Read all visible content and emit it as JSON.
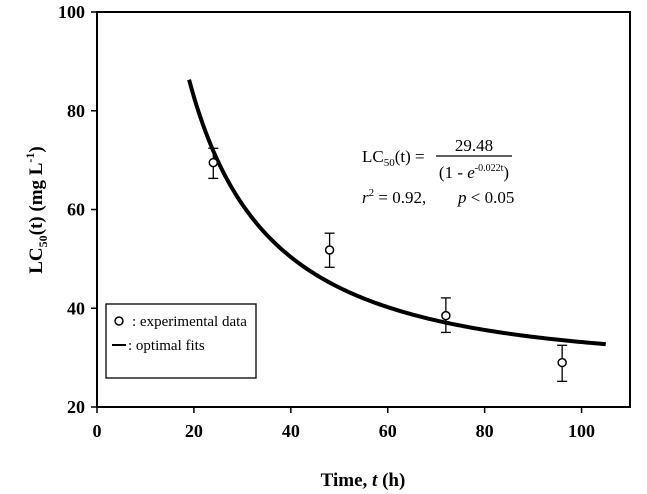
{
  "chart_data": {
    "type": "scatter",
    "xlabel": {
      "prefix": "Time, ",
      "var": "t",
      "suffix": " (h)"
    },
    "ylabel": {
      "pre": "LC",
      "sub": "50",
      "mid": "(t) (mg L",
      "sup": "-1",
      "post": ")"
    },
    "xlim": [
      0,
      110
    ],
    "ylim": [
      20,
      100
    ],
    "xticks": [
      0,
      20,
      40,
      60,
      80,
      100
    ],
    "yticks": [
      20,
      40,
      60,
      80,
      100
    ],
    "grid": false,
    "legend_position": "bottom-left",
    "series": [
      {
        "name": ": experimental data",
        "kind": "points",
        "marker": "open-circle",
        "x": [
          24,
          48,
          72,
          96
        ],
        "y": [
          69.5,
          51.8,
          38.5,
          29
        ],
        "error_low": [
          66.3,
          48.3,
          35.1,
          25.2
        ],
        "error_high": [
          72.4,
          55.2,
          42.1,
          32.5
        ]
      },
      {
        "name": ": optimal fits",
        "kind": "line",
        "x_range": [
          19,
          105
        ],
        "model": {
          "a": 29.48,
          "k": 0.022
        }
      }
    ],
    "equation": {
      "lhs_pre": "LC",
      "lhs_sub": "50",
      "lhs_post": "(t) =",
      "numerator": "29.48",
      "den_pre": "(1 - ",
      "den_e": "e",
      "den_sup": "-0.022t",
      "den_post": ")"
    },
    "stats": {
      "r": "r",
      "r_sup": "2",
      "r_val": " = 0.92,",
      "p": "p",
      "p_val": " < 0.05"
    }
  }
}
